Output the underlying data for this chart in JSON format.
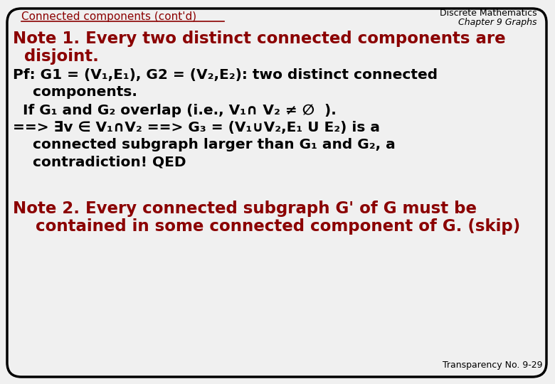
{
  "bg_color": "#f0f0f0",
  "border_color": "#000000",
  "title_text": "Connected components (cont'd)",
  "title_color": "#8B0000",
  "header_line1": "Discrete Mathematics",
  "header_line2": "Chapter 9 Graphs",
  "header_color": "#000000",
  "note1_line1": "Note 1. Every two distinct connected components are",
  "note1_line2": "  disjoint.",
  "note1_color": "#8B0000",
  "body_color": "#000000",
  "pf_line1": "Pf: G1 = (V₁,E₁), G2 = (V₂,E₂): two distinct connected",
  "pf_line2": "    components.",
  "if_line": "  If G₁ and G₂ overlap (i.e., V₁∩ V₂ ≠ ∅  ).",
  "impl_line1": "==> ∃v ∈ V₁∩V₂ ==> G₃ = (V₁∪V₂,E₁ U E₂) is a",
  "impl_line2": "    connected subgraph larger than G₁ and G₂, a",
  "impl_line3": "    contradiction! QED",
  "note2_line1": "Note 2. Every connected subgraph G' of G must be",
  "note2_line2": "    contained in some connected component of G. (skip)",
  "note2_color": "#8B0000",
  "footer_text": "Transparency No. 9-29",
  "footer_color": "#000000"
}
